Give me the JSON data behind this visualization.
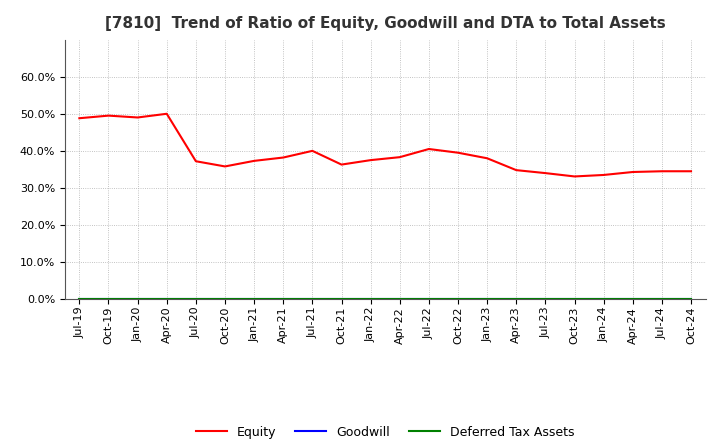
{
  "title": "[7810]  Trend of Ratio of Equity, Goodwill and DTA to Total Assets",
  "x_labels": [
    "Jul-19",
    "Oct-19",
    "Jan-20",
    "Apr-20",
    "Jul-20",
    "Oct-20",
    "Jan-21",
    "Apr-21",
    "Jul-21",
    "Oct-21",
    "Jan-22",
    "Apr-22",
    "Jul-22",
    "Oct-22",
    "Jan-23",
    "Apr-23",
    "Jul-23",
    "Oct-23",
    "Jan-24",
    "Apr-24",
    "Jul-24",
    "Oct-24"
  ],
  "equity": [
    0.488,
    0.495,
    0.49,
    0.5,
    0.372,
    0.358,
    0.373,
    0.382,
    0.4,
    0.363,
    0.375,
    0.383,
    0.405,
    0.395,
    0.38,
    0.348,
    0.34,
    0.331,
    0.335,
    0.343,
    0.345,
    0.345
  ],
  "goodwill": [
    0.0,
    0.0,
    0.0,
    0.0,
    0.0,
    0.0,
    0.0,
    0.0,
    0.0,
    0.0,
    0.0,
    0.0,
    0.0,
    0.0,
    0.0,
    0.0,
    0.0,
    0.0,
    0.0,
    0.0,
    0.0,
    0.0
  ],
  "dta": [
    0.0,
    0.0,
    0.0,
    0.0,
    0.0,
    0.0,
    0.0,
    0.0,
    0.0,
    0.0,
    0.0,
    0.0,
    0.0,
    0.0,
    0.0,
    0.0,
    0.0,
    0.0,
    0.0,
    0.0,
    0.0,
    0.0
  ],
  "equity_color": "#ff0000",
  "goodwill_color": "#0000ff",
  "dta_color": "#008000",
  "ylim": [
    0.0,
    0.7
  ],
  "yticks": [
    0.0,
    0.1,
    0.2,
    0.3,
    0.4,
    0.5,
    0.6
  ],
  "background_color": "#ffffff",
  "plot_bg_color": "#ffffff",
  "grid_color": "#b0b0b0",
  "title_fontsize": 11,
  "tick_fontsize": 8,
  "legend_labels": [
    "Equity",
    "Goodwill",
    "Deferred Tax Assets"
  ]
}
